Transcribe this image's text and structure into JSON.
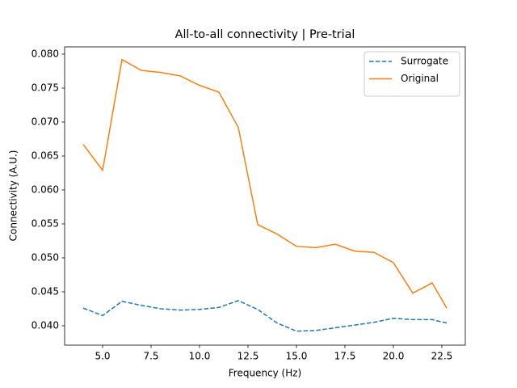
{
  "chart_data": {
    "type": "line",
    "title": "All-to-all connectivity | Pre-trial",
    "xlabel": "Frequency (Hz)",
    "ylabel": "Connectivity (A.U.)",
    "x": [
      4,
      5,
      6,
      7,
      8,
      9,
      10,
      11,
      12,
      13,
      14,
      15,
      16,
      17,
      18,
      19,
      20,
      21,
      22,
      22.75
    ],
    "series": [
      {
        "name": "Surrogate",
        "color": "#1f77b4",
        "linestyle": "dashed",
        "values": [
          0.0426,
          0.0415,
          0.0436,
          0.043,
          0.0425,
          0.0423,
          0.0424,
          0.0427,
          0.0437,
          0.0424,
          0.0404,
          0.0392,
          0.0393,
          0.0397,
          0.0401,
          0.0405,
          0.0411,
          0.0409,
          0.0409,
          0.0404
        ]
      },
      {
        "name": "Original",
        "color": "#ff7f0e",
        "linestyle": "solid",
        "values": [
          0.0667,
          0.0629,
          0.0792,
          0.0776,
          0.0773,
          0.0768,
          0.0754,
          0.0744,
          0.0692,
          0.0549,
          0.0535,
          0.0517,
          0.0515,
          0.052,
          0.051,
          0.0508,
          0.0493,
          0.0448,
          0.0463,
          0.0426
        ]
      }
    ],
    "xlim": [
      3.04,
      23.71
    ],
    "ylim": [
      0.03714,
      0.08107
    ],
    "xticks": [
      {
        "value": 5,
        "label": "5.0"
      },
      {
        "value": 7.5,
        "label": "7.5"
      },
      {
        "value": 10,
        "label": "10.0"
      },
      {
        "value": 12.5,
        "label": "12.5"
      },
      {
        "value": 15,
        "label": "15.0"
      },
      {
        "value": 17.5,
        "label": "17.5"
      },
      {
        "value": 20,
        "label": "20.0"
      },
      {
        "value": 22.5,
        "label": "22.5"
      }
    ],
    "yticks": [
      {
        "value": 0.04,
        "label": "0.040"
      },
      {
        "value": 0.045,
        "label": "0.045"
      },
      {
        "value": 0.05,
        "label": "0.050"
      },
      {
        "value": 0.055,
        "label": "0.055"
      },
      {
        "value": 0.06,
        "label": "0.060"
      },
      {
        "value": 0.065,
        "label": "0.065"
      },
      {
        "value": 0.07,
        "label": "0.070"
      },
      {
        "value": 0.075,
        "label": "0.075"
      },
      {
        "value": 0.08,
        "label": "0.080"
      }
    ],
    "grid": false,
    "legend": "upper-right"
  }
}
